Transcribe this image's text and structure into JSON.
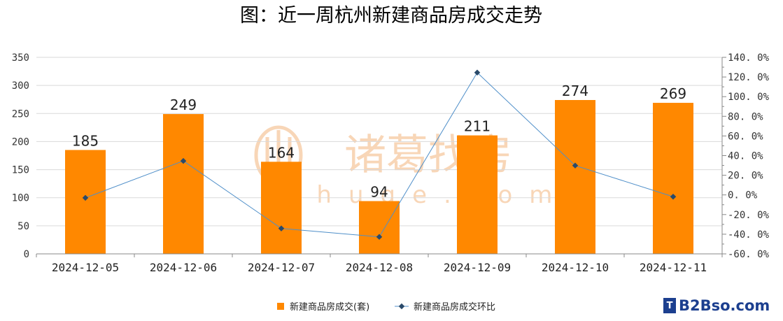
{
  "chart_data": {
    "type": "bar",
    "title": "图：近一周杭州新建商品房成交走势",
    "categories": [
      "2024-12-05",
      "2024-12-06",
      "2024-12-07",
      "2024-12-08",
      "2024-12-09",
      "2024-12-10",
      "2024-12-11"
    ],
    "series": [
      {
        "name": "新建商品房成交(套)",
        "type": "bar",
        "axis": "left",
        "color": "#ff8800",
        "values": [
          185,
          249,
          164,
          94,
          211,
          274,
          269
        ]
      },
      {
        "name": "新建商品房成交环比",
        "type": "line",
        "axis": "right",
        "color": "#4f8fc9",
        "values": [
          -3.0,
          34.6,
          -34.1,
          -42.7,
          124.5,
          29.9,
          -1.8
        ]
      }
    ],
    "ylim": [
      0,
      350
    ],
    "yticks": [
      0,
      50,
      100,
      150,
      200,
      250,
      300,
      350
    ],
    "y2lim": [
      -60,
      140
    ],
    "y2ticks": [
      -60,
      -40,
      -20,
      0,
      20,
      40,
      60,
      80,
      100,
      120,
      140
    ],
    "y2_format": "percent",
    "grid": "horizontal",
    "legend": "bottom-center",
    "data_labels": [
      "185",
      "249",
      "164",
      "94",
      "211",
      "274",
      "269"
    ]
  },
  "watermark": {
    "text": "诸葛找房",
    "sub": "zhuge.com"
  },
  "brand": {
    "mark": "T",
    "text": "B2Bso.com"
  }
}
